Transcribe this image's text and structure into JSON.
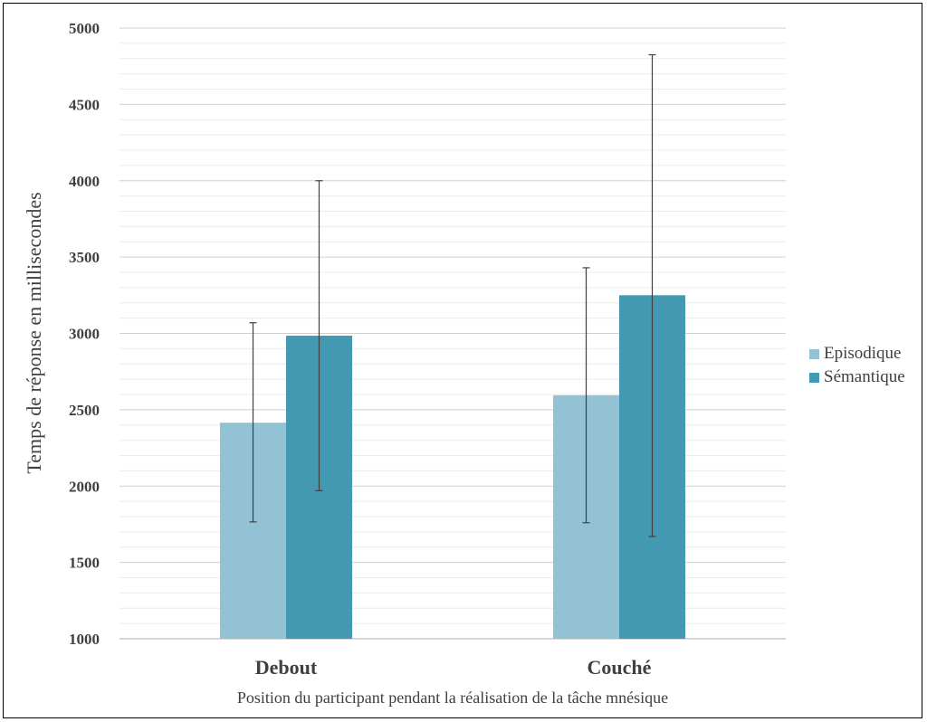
{
  "chart_data": {
    "type": "bar",
    "title": "",
    "xlabel": "Position du participant pendant la réalisation de la tâche mnésique",
    "ylabel": "Temps de réponse en millisecondes",
    "categories": [
      "Debout",
      "Couché"
    ],
    "series": [
      {
        "name": "Episodique",
        "color": "#92c2d3",
        "values": [
          2415,
          2595
        ],
        "error": [
          [
            1765,
            3070
          ],
          [
            1760,
            3430
          ]
        ]
      },
      {
        "name": "Sémantique",
        "color": "#4399b2",
        "values": [
          2985,
          3250
        ],
        "error": [
          [
            1970,
            4000
          ],
          [
            1670,
            4825
          ]
        ]
      }
    ],
    "ylim": [
      1000,
      5000
    ],
    "yticks": [
      1000,
      1500,
      2000,
      2500,
      3000,
      3500,
      4000,
      4500,
      5000
    ],
    "minor_gridline_step": 100,
    "grid": true,
    "legend": "right"
  }
}
